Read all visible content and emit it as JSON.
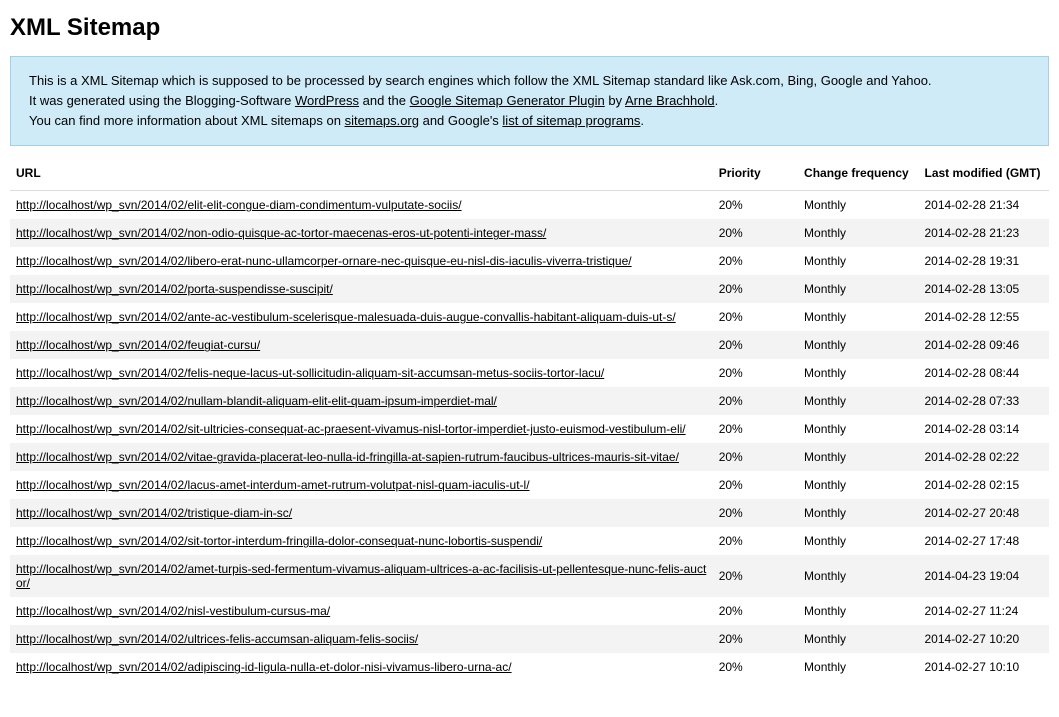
{
  "page_title": "XML Sitemap",
  "info": {
    "line1_pre": "This is a XML Sitemap which is supposed to be processed by search engines which follow the XML Sitemap standard like Ask.com, Bing, Google and Yahoo.",
    "line2_pre": "It was generated using the Blogging-Software ",
    "wp_label": "WordPress",
    "line2_mid": " and the ",
    "plugin_label": "Google Sitemap Generator Plugin",
    "line2_by": " by ",
    "author_label": "Arne Brachhold",
    "line2_end": ".",
    "line3_pre": "You can find more information about XML sitemaps on ",
    "sitemaps_label": "sitemaps.org",
    "line3_mid": " and Google's ",
    "list_label": "list of sitemap programs",
    "line3_end": "."
  },
  "columns": {
    "url": "URL",
    "priority": "Priority",
    "change": "Change frequency",
    "modified": "Last modified (GMT)"
  },
  "rows": [
    {
      "url": "http://localhost/wp_svn/2014/02/elit-elit-congue-diam-condimentum-vulputate-sociis/",
      "priority": "20%",
      "change": "Monthly",
      "modified": "2014-02-28 21:34"
    },
    {
      "url": "http://localhost/wp_svn/2014/02/non-odio-quisque-ac-tortor-maecenas-eros-ut-potenti-integer-mass/",
      "priority": "20%",
      "change": "Monthly",
      "modified": "2014-02-28 21:23"
    },
    {
      "url": "http://localhost/wp_svn/2014/02/libero-erat-nunc-ullamcorper-ornare-nec-quisque-eu-nisl-dis-iaculis-viverra-tristique/",
      "priority": "20%",
      "change": "Monthly",
      "modified": "2014-02-28 19:31"
    },
    {
      "url": "http://localhost/wp_svn/2014/02/porta-suspendisse-suscipit/",
      "priority": "20%",
      "change": "Monthly",
      "modified": "2014-02-28 13:05"
    },
    {
      "url": "http://localhost/wp_svn/2014/02/ante-ac-vestibulum-scelerisque-malesuada-duis-augue-convallis-habitant-aliquam-duis-ut-s/",
      "priority": "20%",
      "change": "Monthly",
      "modified": "2014-02-28 12:55"
    },
    {
      "url": "http://localhost/wp_svn/2014/02/feugiat-cursu/",
      "priority": "20%",
      "change": "Monthly",
      "modified": "2014-02-28 09:46"
    },
    {
      "url": "http://localhost/wp_svn/2014/02/felis-neque-lacus-ut-sollicitudin-aliquam-sit-accumsan-metus-sociis-tortor-lacu/",
      "priority": "20%",
      "change": "Monthly",
      "modified": "2014-02-28 08:44"
    },
    {
      "url": "http://localhost/wp_svn/2014/02/nullam-blandit-aliquam-elit-elit-quam-ipsum-imperdiet-mal/",
      "priority": "20%",
      "change": "Monthly",
      "modified": "2014-02-28 07:33"
    },
    {
      "url": "http://localhost/wp_svn/2014/02/sit-ultricies-consequat-ac-praesent-vivamus-nisl-tortor-imperdiet-justo-euismod-vestibulum-eli/",
      "priority": "20%",
      "change": "Monthly",
      "modified": "2014-02-28 03:14"
    },
    {
      "url": "http://localhost/wp_svn/2014/02/vitae-gravida-placerat-leo-nulla-id-fringilla-at-sapien-rutrum-faucibus-ultrices-mauris-sit-vitae/",
      "priority": "20%",
      "change": "Monthly",
      "modified": "2014-02-28 02:22"
    },
    {
      "url": "http://localhost/wp_svn/2014/02/lacus-amet-interdum-amet-rutrum-volutpat-nisl-quam-iaculis-ut-l/",
      "priority": "20%",
      "change": "Monthly",
      "modified": "2014-02-28 02:15"
    },
    {
      "url": "http://localhost/wp_svn/2014/02/tristique-diam-in-sc/",
      "priority": "20%",
      "change": "Monthly",
      "modified": "2014-02-27 20:48"
    },
    {
      "url": "http://localhost/wp_svn/2014/02/sit-tortor-interdum-fringilla-dolor-consequat-nunc-lobortis-suspendi/",
      "priority": "20%",
      "change": "Monthly",
      "modified": "2014-02-27 17:48"
    },
    {
      "url": "http://localhost/wp_svn/2014/02/amet-turpis-sed-fermentum-vivamus-aliquam-ultrices-a-ac-facilisis-ut-pellentesque-nunc-felis-auctor/",
      "priority": "20%",
      "change": "Monthly",
      "modified": "2014-04-23 19:04"
    },
    {
      "url": "http://localhost/wp_svn/2014/02/nisl-vestibulum-cursus-ma/",
      "priority": "20%",
      "change": "Monthly",
      "modified": "2014-02-27 11:24"
    },
    {
      "url": "http://localhost/wp_svn/2014/02/ultrices-felis-accumsan-aliquam-felis-sociis/",
      "priority": "20%",
      "change": "Monthly",
      "modified": "2014-02-27 10:20"
    },
    {
      "url": "http://localhost/wp_svn/2014/02/adipiscing-id-ligula-nulla-et-dolor-nisi-vivamus-libero-urna-ac/",
      "priority": "20%",
      "change": "Monthly",
      "modified": "2014-02-27 10:10"
    }
  ]
}
